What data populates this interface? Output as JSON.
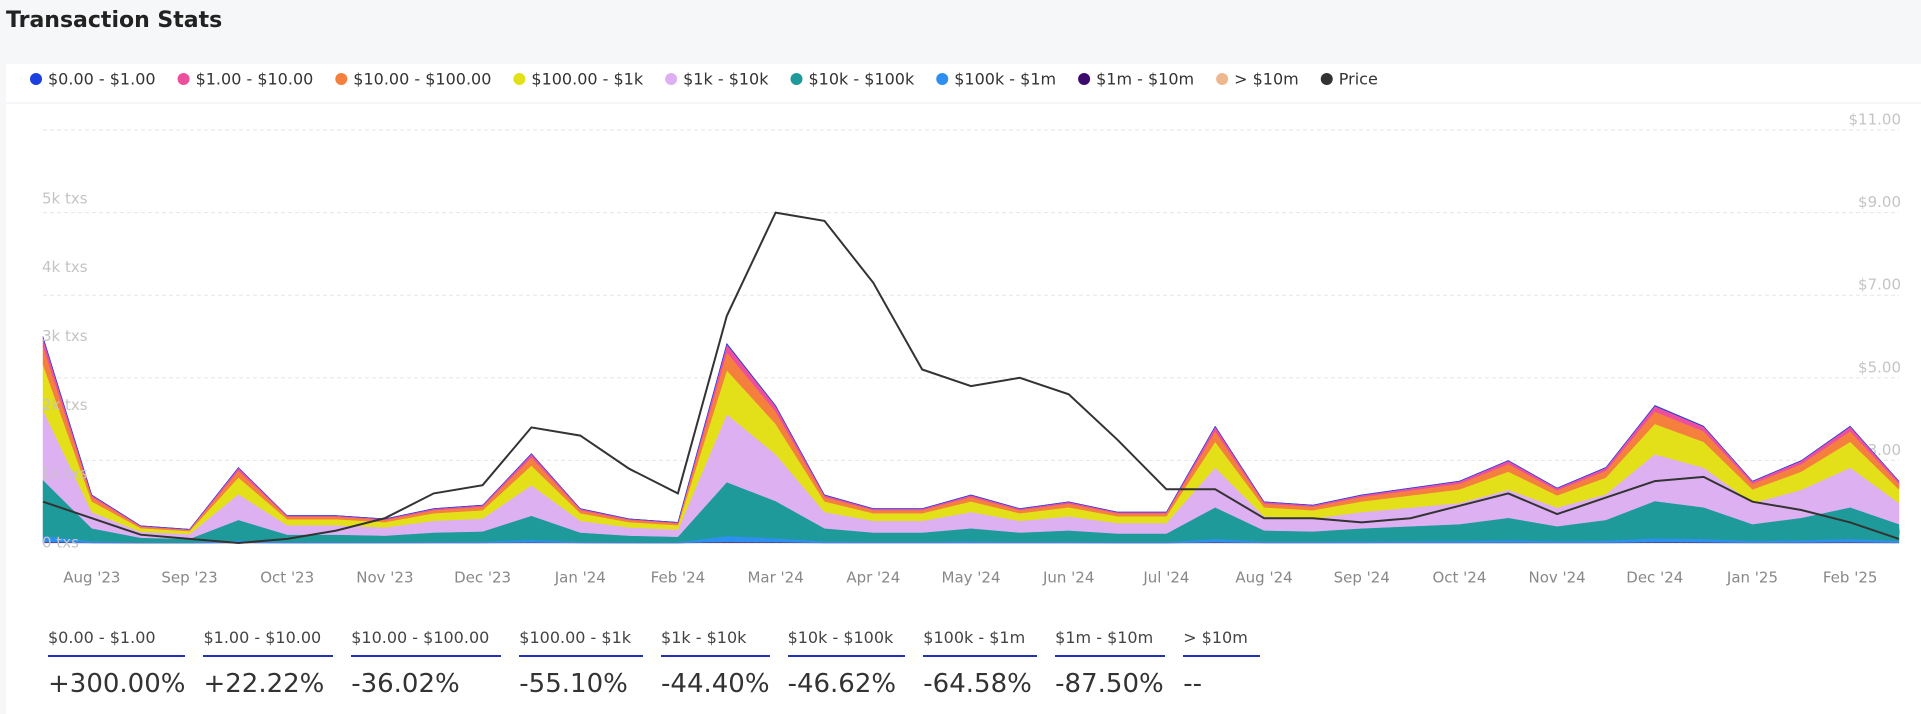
{
  "chart_data": {
    "type": "area",
    "title": "Transaction Stats",
    "categories": [
      null,
      "Aug '23",
      null,
      "Sep '23",
      null,
      "Oct '23",
      null,
      "Nov '23",
      null,
      "Dec '23",
      null,
      "Jan '24",
      null,
      "Feb '24",
      null,
      "Mar '24",
      null,
      "Apr '24",
      null,
      "May '24",
      null,
      "Jun '24",
      null,
      "Jul '24",
      null,
      "Aug '24",
      null,
      "Sep '24",
      null,
      "Oct '24",
      null,
      "Nov '24",
      null,
      "Dec '24",
      null,
      "Jan '25",
      null,
      "Feb '25",
      null
    ],
    "ylim": [
      0,
      6000
    ],
    "yticks": [
      {
        "value": 0,
        "label": "0 txs"
      },
      {
        "value": 1000,
        "label": "1k txs"
      },
      {
        "value": 2000,
        "label": "2k txs"
      },
      {
        "value": 3000,
        "label": "3k txs"
      },
      {
        "value": 4000,
        "label": "4k txs"
      },
      {
        "value": 5000,
        "label": "5k txs"
      }
    ],
    "y2lim": [
      1,
      11
    ],
    "y2ticks": [
      {
        "value": 1,
        "label": "$1.00"
      },
      {
        "value": 3,
        "label": "$3.00"
      },
      {
        "value": 5,
        "label": "$5.00"
      },
      {
        "value": 7,
        "label": "$7.00"
      },
      {
        "value": 9,
        "label": "$9.00"
      },
      {
        "value": 11,
        "label": "$11.00"
      }
    ],
    "grid": true,
    "series": [
      {
        "name": "$0.00 - $1.00",
        "color": "#1c3fe0",
        "values": [
          15,
          4,
          1,
          1,
          6,
          2,
          2,
          2,
          3,
          3,
          7,
          3,
          2,
          2,
          15,
          10,
          4,
          3,
          3,
          4,
          3,
          3,
          2,
          2,
          9,
          3,
          3,
          4,
          4,
          5,
          6,
          4,
          6,
          10,
          9,
          5,
          6,
          9,
          5
        ]
      },
      {
        "name": "$1.00 - $10.00",
        "color": "#ec4f9e",
        "values": [
          120,
          28,
          10,
          8,
          44,
          16,
          16,
          14,
          20,
          22,
          52,
          20,
          14,
          12,
          116,
          80,
          28,
          20,
          20,
          28,
          20,
          24,
          18,
          18,
          68,
          24,
          22,
          28,
          32,
          36,
          48,
          32,
          44,
          80,
          68,
          36,
          48,
          68,
          36
        ]
      },
      {
        "name": "$10.00 - $100.00",
        "color": "#f5803e",
        "values": [
          270,
          63,
          23,
          18,
          99,
          36,
          36,
          32,
          45,
          50,
          117,
          45,
          32,
          27,
          261,
          180,
          63,
          45,
          45,
          63,
          45,
          54,
          41,
          41,
          153,
          54,
          50,
          63,
          72,
          81,
          108,
          72,
          99,
          180,
          153,
          81,
          108,
          153,
          81
        ]
      },
      {
        "name": "$100.00 - $1k",
        "color": "#e3e01a",
        "values": [
          660,
          154,
          55,
          44,
          242,
          88,
          88,
          77,
          110,
          121,
          286,
          110,
          77,
          66,
          638,
          440,
          154,
          110,
          110,
          154,
          110,
          132,
          99,
          99,
          374,
          132,
          121,
          154,
          176,
          198,
          264,
          176,
          242,
          440,
          374,
          198,
          264,
          374,
          198
        ]
      },
      {
        "name": "$1k - $10k",
        "color": "#ddb0f2",
        "values": [
          1020,
          238,
          85,
          68,
          374,
          136,
          136,
          119,
          170,
          187,
          442,
          170,
          119,
          102,
          986,
          680,
          238,
          170,
          170,
          238,
          170,
          204,
          153,
          153,
          578,
          204,
          187,
          238,
          272,
          306,
          408,
          272,
          374,
          680,
          578,
          306,
          408,
          578,
          306
        ]
      },
      {
        "name": "$10k - $100k",
        "color": "#1f9a9a",
        "values": [
          810,
          189,
          68,
          54,
          297,
          108,
          108,
          95,
          135,
          149,
          351,
          135,
          95,
          81,
          783,
          540,
          189,
          135,
          135,
          189,
          135,
          162,
          122,
          122,
          459,
          162,
          149,
          189,
          216,
          243,
          324,
          216,
          297,
          540,
          459,
          243,
          324,
          459,
          243
        ]
      },
      {
        "name": "$100k - $1m",
        "color": "#2d8ff0",
        "values": [
          90,
          21,
          8,
          6,
          33,
          12,
          12,
          11,
          15,
          17,
          39,
          15,
          11,
          9,
          87,
          60,
          21,
          15,
          15,
          21,
          15,
          18,
          14,
          14,
          51,
          18,
          17,
          21,
          24,
          27,
          36,
          24,
          33,
          60,
          51,
          27,
          36,
          51,
          27
        ]
      },
      {
        "name": "$1m - $10m",
        "color": "#3d0a6e",
        "values": [
          9,
          2,
          1,
          1,
          3,
          1,
          1,
          1,
          2,
          2,
          4,
          2,
          1,
          1,
          9,
          6,
          2,
          2,
          2,
          2,
          2,
          2,
          1,
          1,
          5,
          2,
          2,
          2,
          2,
          3,
          4,
          2,
          3,
          6,
          5,
          3,
          4,
          5,
          3
        ]
      },
      {
        "name": "> $10m",
        "color": "#eeb88e",
        "values": [
          6,
          1,
          0,
          0,
          2,
          1,
          1,
          1,
          1,
          1,
          3,
          1,
          1,
          1,
          6,
          4,
          1,
          1,
          1,
          1,
          1,
          1,
          1,
          1,
          3,
          1,
          1,
          1,
          2,
          2,
          2,
          2,
          2,
          4,
          3,
          2,
          2,
          3,
          2
        ]
      },
      {
        "name": "Price",
        "color": "#333333",
        "axis": "y2",
        "values": [
          2.0,
          1.6,
          1.2,
          1.1,
          1.0,
          1.1,
          1.3,
          1.6,
          2.2,
          2.4,
          3.8,
          3.6,
          2.8,
          2.2,
          6.5,
          9.0,
          8.8,
          7.3,
          5.2,
          4.8,
          5.0,
          4.6,
          3.5,
          2.3,
          2.3,
          1.6,
          1.6,
          1.5,
          1.6,
          1.9,
          2.2,
          1.7,
          2.1,
          2.5,
          2.6,
          2.0,
          1.8,
          1.5,
          1.1
        ]
      }
    ]
  },
  "stats": {
    "items": [
      {
        "label": "$0.00 - $1.00",
        "value": "+300.00%"
      },
      {
        "label": "$1.00 - $10.00",
        "value": "+22.22%"
      },
      {
        "label": "$10.00 - $100.00",
        "value": "-36.02%"
      },
      {
        "label": "$100.00 - $1k",
        "value": "-55.10%"
      },
      {
        "label": "$1k - $10k",
        "value": "-44.40%"
      },
      {
        "label": "$10k - $100k",
        "value": "-46.62%"
      },
      {
        "label": "$100k - $1m",
        "value": "-64.58%"
      },
      {
        "label": "$1m - $10m",
        "value": "-87.50%"
      },
      {
        "label": "> $10m",
        "value": "--"
      }
    ]
  }
}
